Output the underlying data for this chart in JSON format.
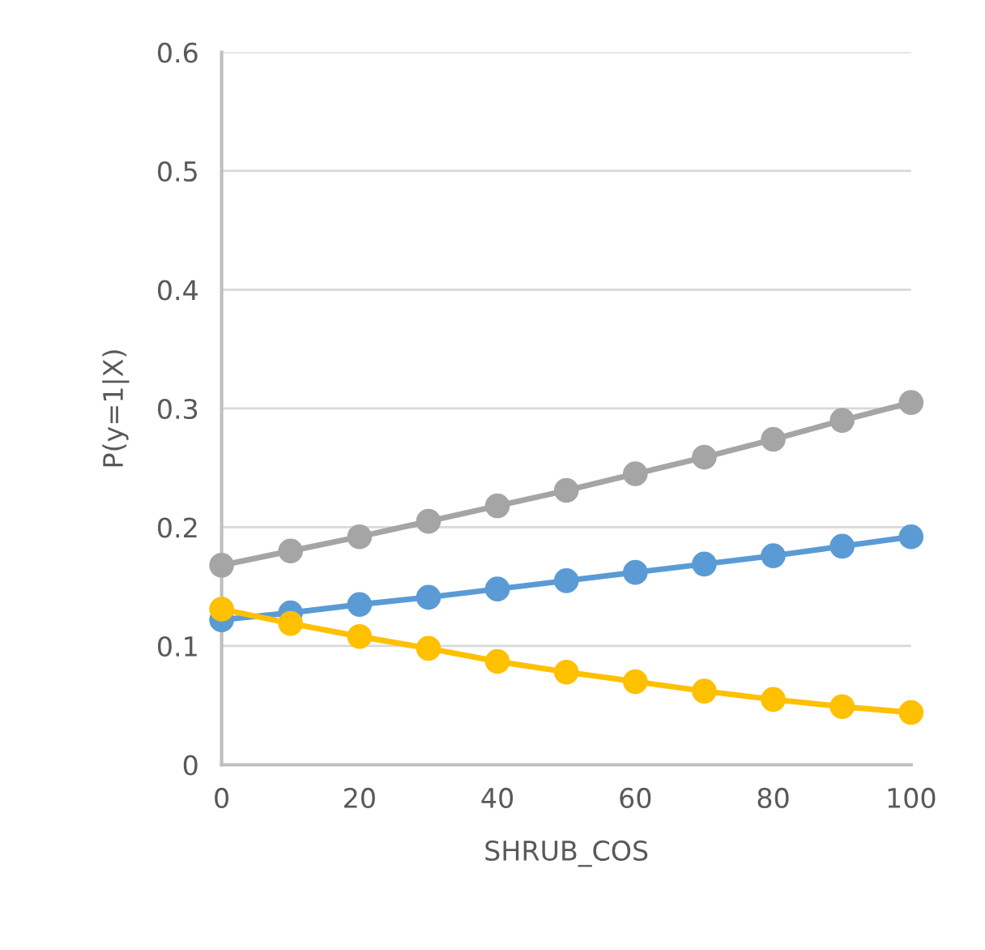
{
  "chart_data": {
    "type": "line",
    "xlabel": "SHRUB_COS",
    "ylabel": "P(y=1|X)",
    "x": [
      0,
      10,
      20,
      30,
      40,
      50,
      60,
      70,
      80,
      90,
      100
    ],
    "series": [
      {
        "color": "#a5a5a5",
        "values": [
          0.168,
          0.18,
          0.192,
          0.205,
          0.218,
          0.231,
          0.245,
          0.259,
          0.274,
          0.29,
          0.305
        ]
      },
      {
        "color": "#5b9bd5",
        "values": [
          0.122,
          0.128,
          0.135,
          0.141,
          0.148,
          0.155,
          0.162,
          0.169,
          0.176,
          0.184,
          0.192
        ]
      },
      {
        "color": "#ffc000",
        "values": [
          0.131,
          0.119,
          0.108,
          0.098,
          0.087,
          0.078,
          0.07,
          0.062,
          0.055,
          0.049,
          0.044
        ]
      }
    ],
    "xlim": [
      0,
      100
    ],
    "xticks": [
      0,
      20,
      40,
      60,
      80,
      100
    ],
    "ylim": [
      0,
      0.6
    ],
    "yticks": [
      0,
      0.1,
      0.2,
      0.3,
      0.4,
      0.5,
      0.6
    ],
    "grid": "y",
    "marker": "circle",
    "line_style": "solid",
    "legend": false
  }
}
